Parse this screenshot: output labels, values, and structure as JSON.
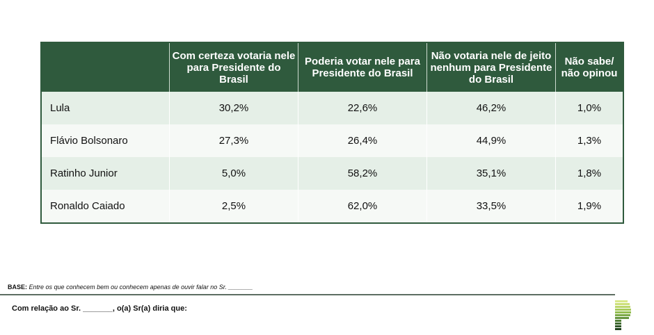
{
  "table": {
    "headers": [
      "",
      "Com certeza votaria nele para Presidente do Brasil",
      "Poderia votar nele para Presidente do Brasil",
      "Não votaria nele de jeito nenhum para Presidente do Brasil",
      "Não sabe/ não opinou"
    ],
    "rows": [
      {
        "name": "Lula",
        "values": [
          "30,2%",
          "22,6%",
          "46,2%",
          "1,0%"
        ]
      },
      {
        "name": "Flávio Bolsonaro",
        "values": [
          "27,3%",
          "26,4%",
          "44,9%",
          "1,3%"
        ]
      },
      {
        "name": "Ratinho Junior",
        "values": [
          "5,0%",
          "58,2%",
          "35,1%",
          "1,8%"
        ]
      },
      {
        "name": "Ronaldo Caiado",
        "values": [
          "2,5%",
          "62,0%",
          "33,5%",
          "1,9%"
        ]
      }
    ]
  },
  "footer": {
    "base_label": "BASE:",
    "base_text": "Entre os que conhecem bem ou conhecem apenas de ouvir falar no Sr. _______",
    "question": "Com relação ao Sr. _______, o(a) Sr(a) diria que:"
  },
  "colors": {
    "header": "#2f5a3d",
    "row_alt": "#e5efe7",
    "row": "#f6f9f6"
  }
}
